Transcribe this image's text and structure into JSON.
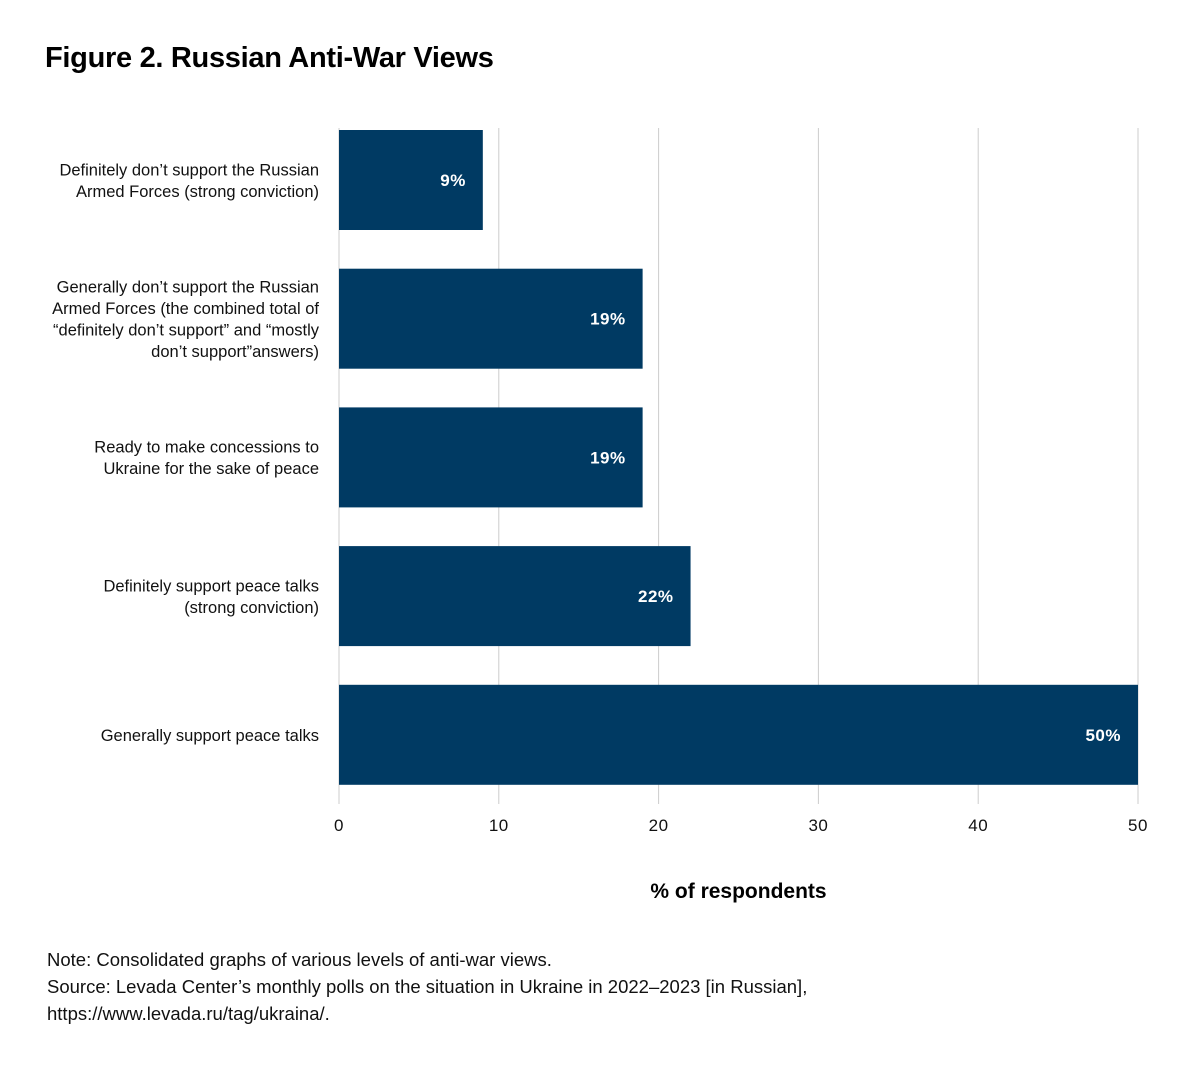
{
  "title": "Figure 2. Russian Anti-War Views",
  "chart_data": {
    "type": "bar",
    "orientation": "horizontal",
    "categories": [
      [
        "Definitely don’t support the Russian",
        "Armed Forces (strong conviction)"
      ],
      [
        "Generally don’t support the Russian",
        "Armed Forces (the combined total of",
        "“definitely don’t support” and “mostly",
        "don’t support”answers)"
      ],
      [
        "Ready to make concessions to",
        "Ukraine for the sake of peace"
      ],
      [
        "Definitely support peace talks",
        "(strong conviction)"
      ],
      [
        "Generally support peace talks"
      ]
    ],
    "values": [
      9,
      19,
      19,
      22,
      50
    ],
    "data_labels": [
      "9%",
      "19%",
      "19%",
      "22%",
      "50%"
    ],
    "xlabel": "% of respondents",
    "ylabel": "",
    "xlim": [
      0,
      50
    ],
    "xticks": [
      0,
      10,
      20,
      30,
      40,
      50
    ],
    "grid": "vertical",
    "bar_color": "#003a63",
    "grid_color": "#cccccc"
  },
  "notes": {
    "line1": "Note: Consolidated graphs of various levels of anti-war views.",
    "line2": "Source: Levada Center’s monthly polls on the situation in Ukraine in 2022–2023 [in Russian],",
    "line3": "https://www.levada.ru/tag/ukraina/."
  }
}
